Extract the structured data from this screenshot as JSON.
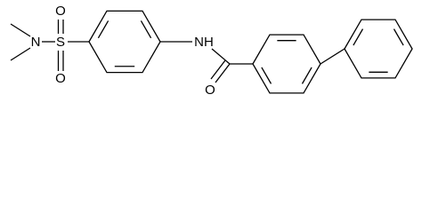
{
  "atoms": [
    "N",
    "S",
    "O",
    "O",
    "NH",
    "O"
  ]
}
